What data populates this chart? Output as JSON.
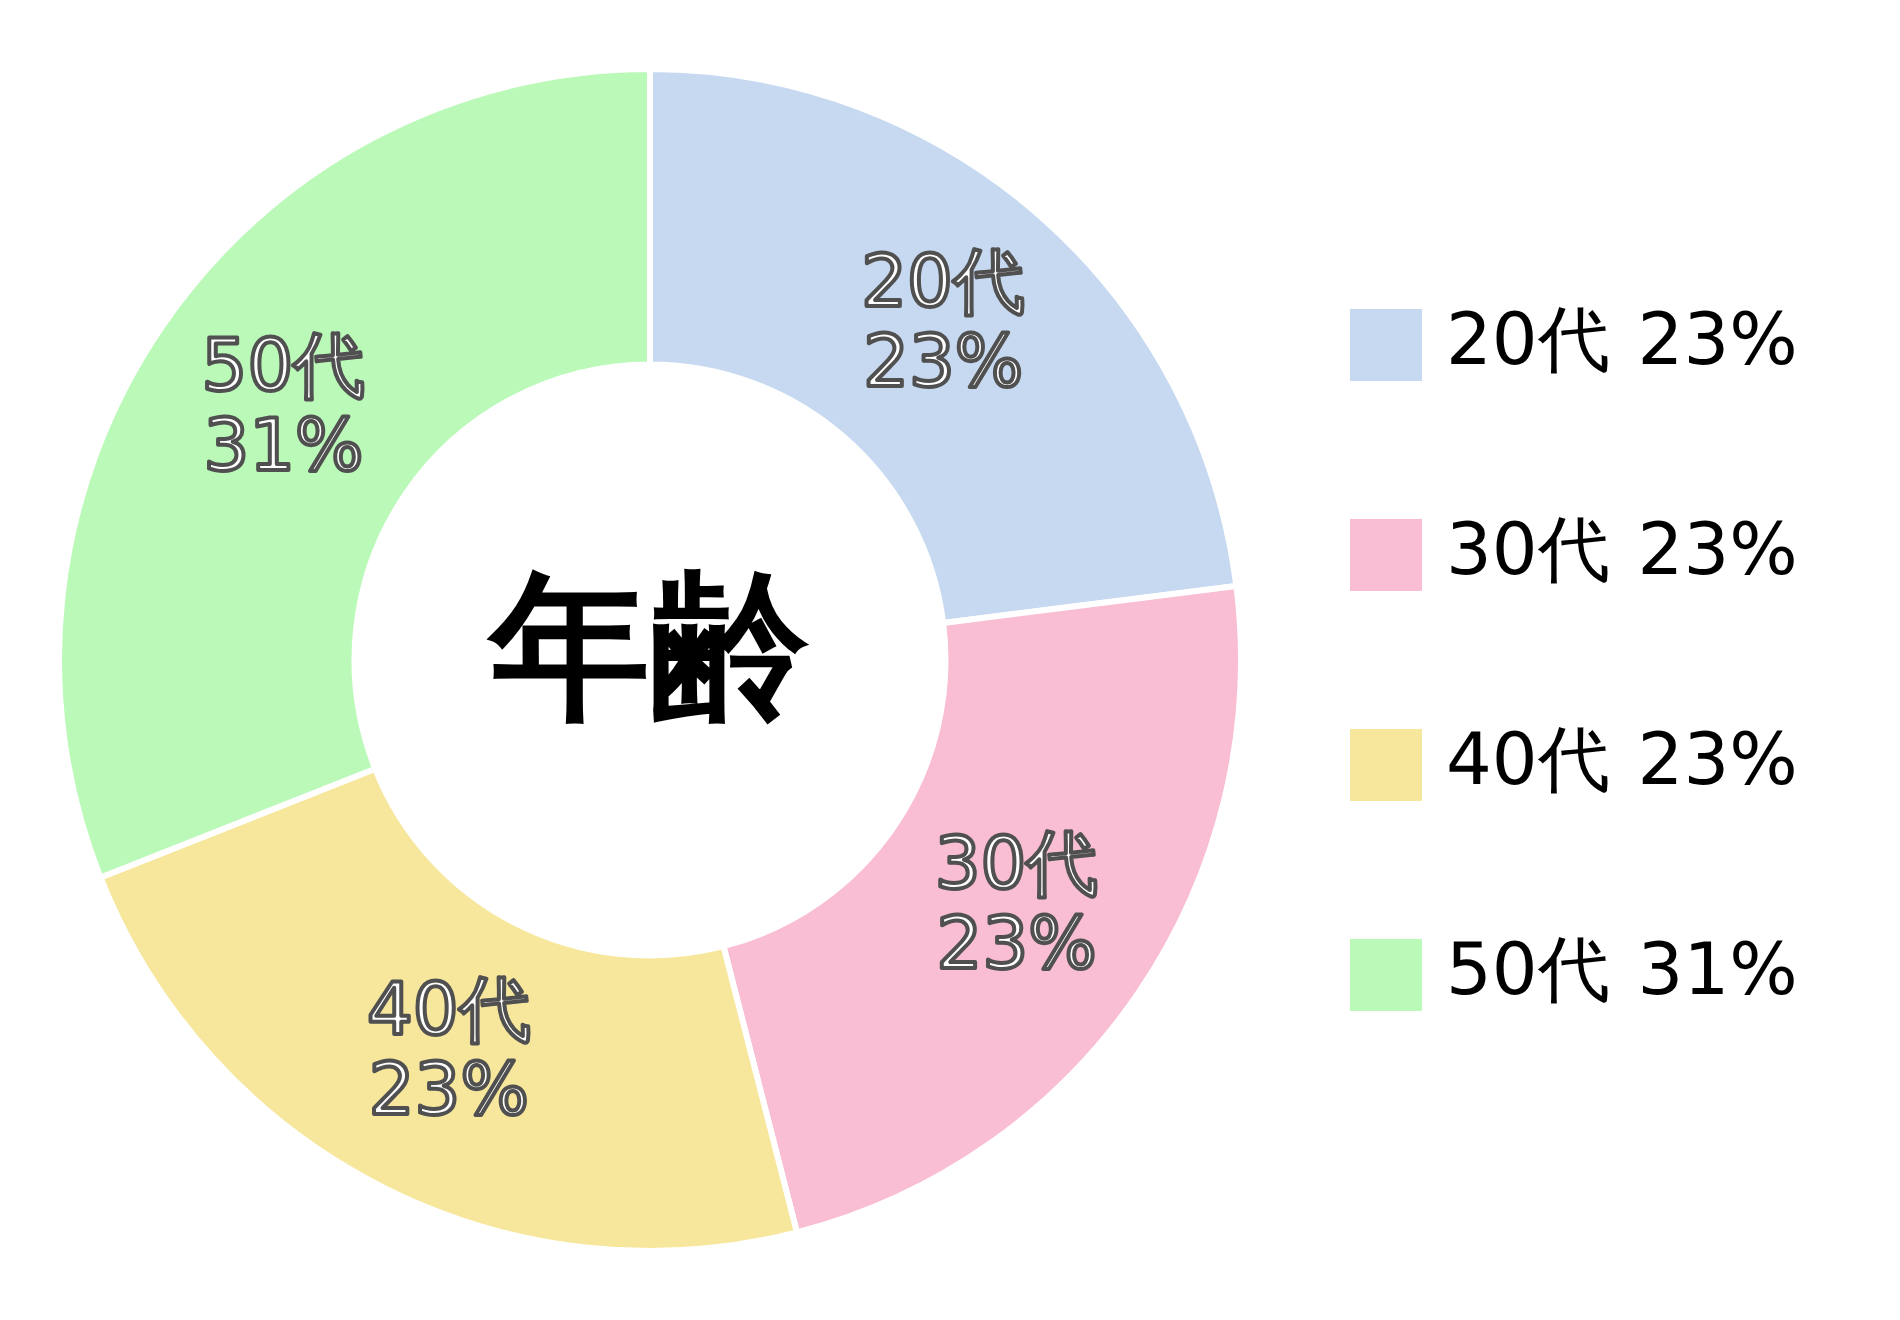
{
  "chart_data": {
    "type": "donut",
    "title": "年齢",
    "categories": [
      "20代",
      "30代",
      "40代",
      "50代"
    ],
    "values": [
      23,
      23,
      23,
      31
    ],
    "value_labels": [
      "23%",
      "23%",
      "23%",
      "31%"
    ],
    "colors": [
      "#c6d9f0",
      "#f9bdd4",
      "#f7e79d",
      "#bbf9b9"
    ],
    "legend": "right"
  }
}
